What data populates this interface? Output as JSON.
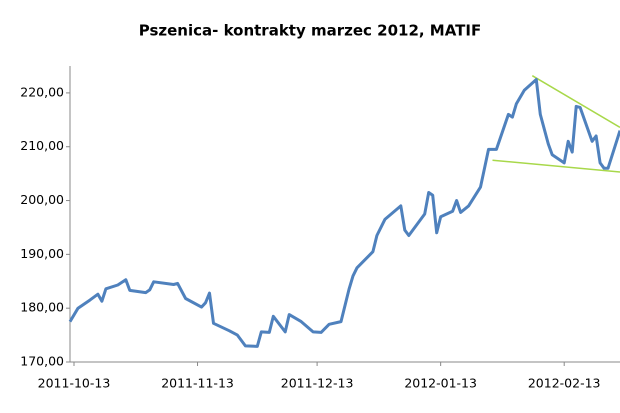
{
  "chart_data": {
    "type": "line",
    "title": "Pszenica- kontrakty marzec 2012, MATIF",
    "x": [
      "2011-10-12",
      "2011-10-14",
      "2011-10-17",
      "2011-10-19",
      "2011-10-20",
      "2011-10-21",
      "2011-10-24",
      "2011-10-26",
      "2011-10-27",
      "2011-10-31",
      "2011-11-01",
      "2011-11-02",
      "2011-11-07",
      "2011-11-08",
      "2011-11-10",
      "2011-11-14",
      "2011-11-15",
      "2011-11-16",
      "2011-11-17",
      "2011-11-21",
      "2011-11-23",
      "2011-11-25",
      "2011-11-28",
      "2011-11-29",
      "2011-12-01",
      "2011-12-02",
      "2011-12-05",
      "2011-12-06",
      "2011-12-09",
      "2011-12-12",
      "2011-12-14",
      "2011-12-16",
      "2011-12-19",
      "2011-12-20",
      "2011-12-21",
      "2011-12-22",
      "2011-12-23",
      "2011-12-27",
      "2011-12-28",
      "2011-12-30",
      "2012-01-03",
      "2012-01-04",
      "2012-01-05",
      "2012-01-09",
      "2012-01-10",
      "2012-01-11",
      "2012-01-12",
      "2012-01-13",
      "2012-01-16",
      "2012-01-17",
      "2012-01-18",
      "2012-01-20",
      "2012-01-23",
      "2012-01-24",
      "2012-01-25",
      "2012-01-27",
      "2012-01-30",
      "2012-01-31",
      "2012-02-01",
      "2012-02-03",
      "2012-02-06",
      "2012-02-07",
      "2012-02-09",
      "2012-02-10",
      "2012-02-13",
      "2012-02-14",
      "2012-02-15",
      "2012-02-16",
      "2012-02-17",
      "2012-02-20",
      "2012-02-21",
      "2012-02-22",
      "2012-02-23",
      "2012-02-24",
      "2012-02-27"
    ],
    "series": [
      {
        "color": "#4f81bd",
        "values": [
          177.5,
          180.0,
          181.5,
          182.6,
          181.3,
          183.6,
          184.3,
          185.3,
          183.3,
          182.9,
          183.4,
          184.9,
          184.4,
          184.6,
          181.8,
          180.2,
          181.0,
          182.8,
          177.2,
          175.8,
          175.0,
          173.0,
          172.9,
          175.6,
          175.5,
          178.5,
          175.6,
          178.8,
          177.5,
          175.6,
          175.5,
          177.0,
          177.5,
          180.5,
          183.5,
          186.0,
          187.5,
          190.5,
          193.5,
          196.5,
          199.0,
          194.5,
          193.5,
          197.5,
          201.5,
          201.0,
          194.0,
          197.0,
          198.0,
          200.0,
          197.8,
          199.0,
          202.5,
          206.0,
          209.5,
          209.5,
          216.0,
          215.5,
          218.0,
          220.5,
          222.5,
          216.0,
          210.5,
          208.5,
          207.0,
          211.0,
          209.0,
          217.5,
          217.3,
          211.0,
          212.0,
          207.0,
          206.0,
          206.0,
          213.0
        ]
      }
    ],
    "trend_lines": [
      {
        "color": "#a8d84a",
        "x": [
          "2012-02-05",
          "2012-02-27"
        ],
        "values": [
          223.2,
          213.6
        ]
      },
      {
        "color": "#a8d84a",
        "x": [
          "2012-01-26",
          "2012-02-27"
        ],
        "values": [
          207.5,
          205.3
        ]
      }
    ],
    "xlim": [
      "2011-10-12",
      "2012-02-27"
    ],
    "xticks": [
      "2011-10-13",
      "2011-11-13",
      "2011-12-13",
      "2012-01-13",
      "2012-02-13"
    ],
    "ylim": [
      170,
      225
    ],
    "yticks": [
      {
        "value": 170,
        "label": "170,00"
      },
      {
        "value": 180,
        "label": "180,00"
      },
      {
        "value": 190,
        "label": "190,00"
      },
      {
        "value": 200,
        "label": "200,00"
      },
      {
        "value": 210,
        "label": "210,00"
      },
      {
        "value": 220,
        "label": "220,00"
      }
    ],
    "grid": false
  }
}
